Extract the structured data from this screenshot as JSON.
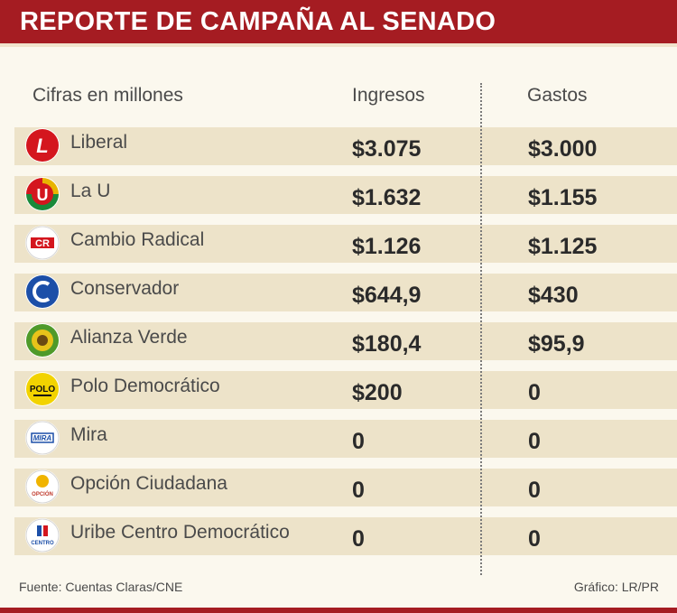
{
  "header": {
    "title": "REPORTE DE CAMPAÑA AL SENADO"
  },
  "columns": {
    "label": "Cifras en millones",
    "ingresos": "Ingresos",
    "gastos": "Gastos"
  },
  "rows": [
    {
      "party": "Liberal",
      "ingresos": "$3.075",
      "gastos": "$3.000",
      "logo": "liberal-logo"
    },
    {
      "party": "La U",
      "ingresos": "$1.632",
      "gastos": "$1.155",
      "logo": "la-u-logo"
    },
    {
      "party": "Cambio Radical",
      "ingresos": "$1.126",
      "gastos": "$1.125",
      "logo": "cambio-radical-logo"
    },
    {
      "party": "Conservador",
      "ingresos": "$644,9",
      "gastos": "$430",
      "logo": "conservador-logo"
    },
    {
      "party": "Alianza Verde",
      "ingresos": "$180,4",
      "gastos": "$95,9",
      "logo": "alianza-verde-logo"
    },
    {
      "party": "Polo Democrático",
      "ingresos": "$200",
      "gastos": "0",
      "logo": "polo-logo"
    },
    {
      "party": "Mira",
      "ingresos": "0",
      "gastos": "0",
      "logo": "mira-logo"
    },
    {
      "party": "Opción Ciudadana",
      "ingresos": "0",
      "gastos": "0",
      "logo": "opcion-ciudadana-logo"
    },
    {
      "party": "Uribe Centro Democrático",
      "ingresos": "0",
      "gastos": "0",
      "logo": "centro-democratico-logo"
    }
  ],
  "logo_text": {
    "liberal": "L",
    "la_u": "U",
    "cambio_radical": "CR",
    "polo": "POLO",
    "mira": "MIRA",
    "opcion": "OPCIÓN",
    "centro": "CENTRO"
  },
  "footer": {
    "source": "Fuente:  Cuentas Claras/CNE",
    "credit": "Gráfico: LR/PR"
  },
  "colors": {
    "header": "#a51c22",
    "band": "#ede3c9",
    "background": "#fbf8ee"
  }
}
